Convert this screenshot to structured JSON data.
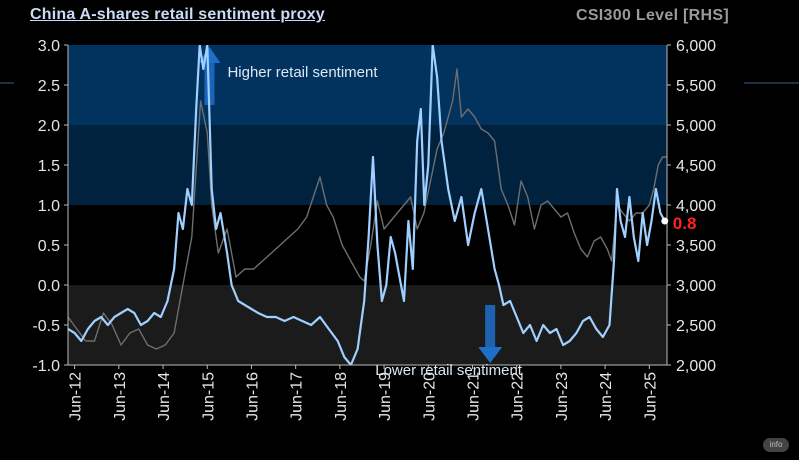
{
  "title": "China A-shares retail sentiment proxy",
  "rhs_title": "CSI300 Level [RHS]",
  "watermark": "info",
  "colors": {
    "background": "#000000",
    "band_top": "#02325e",
    "band_mid": "#01223f",
    "band_zero_pos": "#000000",
    "band_neg": "#1b1b1b",
    "sentiment_line": "#9fd0ff",
    "csi_line": "#6e6e6e",
    "arrow": "#1f6fc9",
    "last_value": "#ff2222"
  },
  "chart_data": {
    "type": "line",
    "x_ticks": [
      "Jun-12",
      "Jun-13",
      "Jun-14",
      "Jun-15",
      "Jun-16",
      "Jun-17",
      "Jun-18",
      "Jun-19",
      "Jun-20",
      "Jun-21",
      "Jun-22",
      "Jun-23",
      "Jun-24",
      "Jun-25"
    ],
    "x_range": [
      2012.3,
      2025.85
    ],
    "left_axis": {
      "ylim": [
        -1.0,
        3.0
      ],
      "ticks": [
        "3.0",
        "2.5",
        "2.0",
        "1.5",
        "1.0",
        "0.5",
        "0.0",
        "-0.5",
        "-1.0"
      ]
    },
    "right_axis": {
      "ylim": [
        2000,
        6000
      ],
      "ticks": [
        "6,000",
        "5,500",
        "5,000",
        "4,500",
        "4,000",
        "3,500",
        "3,000",
        "2,500",
        "2,000"
      ]
    },
    "bands": [
      {
        "from": 2.0,
        "to": 3.0,
        "color_key": "band_top"
      },
      {
        "from": 1.0,
        "to": 2.0,
        "color_key": "band_mid"
      },
      {
        "from": 0.0,
        "to": 1.0,
        "color_key": "band_zero_pos"
      },
      {
        "from": -1.0,
        "to": 0.0,
        "color_key": "band_neg"
      }
    ],
    "annotations": {
      "upper": "Higher retail sentiment",
      "lower": "Lower retail sentiment",
      "last_value": "0.8"
    },
    "series": [
      {
        "axis": "left",
        "points": [
          [
            2012.3,
            -0.55
          ],
          [
            2012.45,
            -0.6
          ],
          [
            2012.6,
            -0.7
          ],
          [
            2012.75,
            -0.55
          ],
          [
            2012.9,
            -0.45
          ],
          [
            2013.05,
            -0.4
          ],
          [
            2013.2,
            -0.5
          ],
          [
            2013.35,
            -0.4
          ],
          [
            2013.5,
            -0.35
          ],
          [
            2013.65,
            -0.3
          ],
          [
            2013.8,
            -0.35
          ],
          [
            2013.95,
            -0.5
          ],
          [
            2014.1,
            -0.45
          ],
          [
            2014.25,
            -0.35
          ],
          [
            2014.4,
            -0.4
          ],
          [
            2014.55,
            -0.2
          ],
          [
            2014.7,
            0.2
          ],
          [
            2014.8,
            0.9
          ],
          [
            2014.9,
            0.7
          ],
          [
            2015.0,
            1.2
          ],
          [
            2015.1,
            1.0
          ],
          [
            2015.2,
            2.2
          ],
          [
            2015.28,
            3.0
          ],
          [
            2015.36,
            2.7
          ],
          [
            2015.45,
            3.0
          ],
          [
            2015.55,
            1.2
          ],
          [
            2015.65,
            0.7
          ],
          [
            2015.75,
            0.9
          ],
          [
            2015.9,
            0.4
          ],
          [
            2016.0,
            0.0
          ],
          [
            2016.15,
            -0.2
          ],
          [
            2016.3,
            -0.25
          ],
          [
            2016.45,
            -0.3
          ],
          [
            2016.6,
            -0.35
          ],
          [
            2016.8,
            -0.4
          ],
          [
            2017.0,
            -0.4
          ],
          [
            2017.2,
            -0.45
          ],
          [
            2017.4,
            -0.4
          ],
          [
            2017.6,
            -0.45
          ],
          [
            2017.8,
            -0.5
          ],
          [
            2018.0,
            -0.4
          ],
          [
            2018.2,
            -0.55
          ],
          [
            2018.4,
            -0.7
          ],
          [
            2018.55,
            -0.9
          ],
          [
            2018.7,
            -1.0
          ],
          [
            2018.85,
            -0.8
          ],
          [
            2019.0,
            -0.2
          ],
          [
            2019.1,
            0.6
          ],
          [
            2019.2,
            1.6
          ],
          [
            2019.3,
            0.5
          ],
          [
            2019.4,
            -0.2
          ],
          [
            2019.5,
            0.0
          ],
          [
            2019.6,
            0.6
          ],
          [
            2019.7,
            0.4
          ],
          [
            2019.8,
            0.1
          ],
          [
            2019.9,
            -0.2
          ],
          [
            2020.0,
            0.8
          ],
          [
            2020.1,
            0.2
          ],
          [
            2020.2,
            1.8
          ],
          [
            2020.28,
            2.2
          ],
          [
            2020.36,
            1.0
          ],
          [
            2020.45,
            1.5
          ],
          [
            2020.55,
            3.0
          ],
          [
            2020.65,
            2.6
          ],
          [
            2020.75,
            1.8
          ],
          [
            2020.9,
            1.2
          ],
          [
            2021.05,
            0.8
          ],
          [
            2021.2,
            1.1
          ],
          [
            2021.35,
            0.5
          ],
          [
            2021.5,
            0.9
          ],
          [
            2021.65,
            1.2
          ],
          [
            2021.8,
            0.7
          ],
          [
            2021.95,
            0.2
          ],
          [
            2022.05,
            0.0
          ],
          [
            2022.15,
            -0.25
          ],
          [
            2022.3,
            -0.2
          ],
          [
            2022.45,
            -0.4
          ],
          [
            2022.6,
            -0.6
          ],
          [
            2022.75,
            -0.5
          ],
          [
            2022.9,
            -0.7
          ],
          [
            2023.05,
            -0.5
          ],
          [
            2023.2,
            -0.6
          ],
          [
            2023.35,
            -0.55
          ],
          [
            2023.5,
            -0.75
          ],
          [
            2023.65,
            -0.7
          ],
          [
            2023.8,
            -0.6
          ],
          [
            2023.95,
            -0.45
          ],
          [
            2024.1,
            -0.4
          ],
          [
            2024.25,
            -0.55
          ],
          [
            2024.4,
            -0.65
          ],
          [
            2024.55,
            -0.5
          ],
          [
            2024.65,
            0.3
          ],
          [
            2024.72,
            1.2
          ],
          [
            2024.8,
            0.8
          ],
          [
            2024.9,
            0.6
          ],
          [
            2025.0,
            1.1
          ],
          [
            2025.1,
            0.6
          ],
          [
            2025.2,
            0.3
          ],
          [
            2025.3,
            0.9
          ],
          [
            2025.4,
            0.5
          ],
          [
            2025.5,
            0.8
          ],
          [
            2025.6,
            1.2
          ],
          [
            2025.7,
            0.9
          ],
          [
            2025.8,
            0.8
          ]
        ]
      },
      {
        "name": "CSI300 Level [RHS]",
        "axis": "right",
        "points": [
          [
            2012.3,
            2600
          ],
          [
            2012.5,
            2450
          ],
          [
            2012.7,
            2300
          ],
          [
            2012.9,
            2300
          ],
          [
            2013.1,
            2650
          ],
          [
            2013.3,
            2500
          ],
          [
            2013.5,
            2250
          ],
          [
            2013.7,
            2400
          ],
          [
            2013.9,
            2450
          ],
          [
            2014.1,
            2250
          ],
          [
            2014.3,
            2200
          ],
          [
            2014.5,
            2250
          ],
          [
            2014.7,
            2400
          ],
          [
            2014.9,
            3000
          ],
          [
            2015.1,
            3600
          ],
          [
            2015.3,
            5300
          ],
          [
            2015.45,
            4900
          ],
          [
            2015.55,
            4000
          ],
          [
            2015.7,
            3400
          ],
          [
            2015.9,
            3700
          ],
          [
            2016.1,
            3100
          ],
          [
            2016.3,
            3200
          ],
          [
            2016.5,
            3200
          ],
          [
            2016.7,
            3300
          ],
          [
            2016.9,
            3400
          ],
          [
            2017.1,
            3500
          ],
          [
            2017.3,
            3600
          ],
          [
            2017.5,
            3700
          ],
          [
            2017.7,
            3850
          ],
          [
            2017.85,
            4100
          ],
          [
            2018.0,
            4350
          ],
          [
            2018.15,
            4000
          ],
          [
            2018.3,
            3850
          ],
          [
            2018.5,
            3500
          ],
          [
            2018.7,
            3300
          ],
          [
            2018.9,
            3100
          ],
          [
            2019.0,
            3050
          ],
          [
            2019.15,
            3500
          ],
          [
            2019.3,
            4050
          ],
          [
            2019.45,
            3700
          ],
          [
            2019.6,
            3800
          ],
          [
            2019.75,
            3900
          ],
          [
            2019.9,
            4000
          ],
          [
            2020.05,
            4100
          ],
          [
            2020.2,
            3700
          ],
          [
            2020.35,
            3900
          ],
          [
            2020.5,
            4300
          ],
          [
            2020.65,
            4700
          ],
          [
            2020.8,
            4900
          ],
          [
            2021.0,
            5300
          ],
          [
            2021.1,
            5700
          ],
          [
            2021.2,
            5100
          ],
          [
            2021.35,
            5200
          ],
          [
            2021.5,
            5100
          ],
          [
            2021.65,
            4950
          ],
          [
            2021.8,
            4900
          ],
          [
            2021.95,
            4800
          ],
          [
            2022.1,
            4200
          ],
          [
            2022.25,
            4000
          ],
          [
            2022.4,
            3750
          ],
          [
            2022.55,
            4300
          ],
          [
            2022.7,
            4100
          ],
          [
            2022.85,
            3700
          ],
          [
            2023.0,
            4000
          ],
          [
            2023.15,
            4050
          ],
          [
            2023.3,
            3950
          ],
          [
            2023.45,
            3850
          ],
          [
            2023.6,
            3900
          ],
          [
            2023.75,
            3650
          ],
          [
            2023.9,
            3450
          ],
          [
            2024.05,
            3350
          ],
          [
            2024.2,
            3550
          ],
          [
            2024.35,
            3600
          ],
          [
            2024.5,
            3450
          ],
          [
            2024.6,
            3300
          ],
          [
            2024.72,
            4000
          ],
          [
            2024.85,
            3900
          ],
          [
            2025.0,
            3800
          ],
          [
            2025.15,
            3900
          ],
          [
            2025.3,
            3900
          ],
          [
            2025.45,
            4000
          ],
          [
            2025.55,
            4200
          ],
          [
            2025.65,
            4500
          ],
          [
            2025.75,
            4600
          ],
          [
            2025.85,
            4600
          ]
        ]
      }
    ]
  }
}
